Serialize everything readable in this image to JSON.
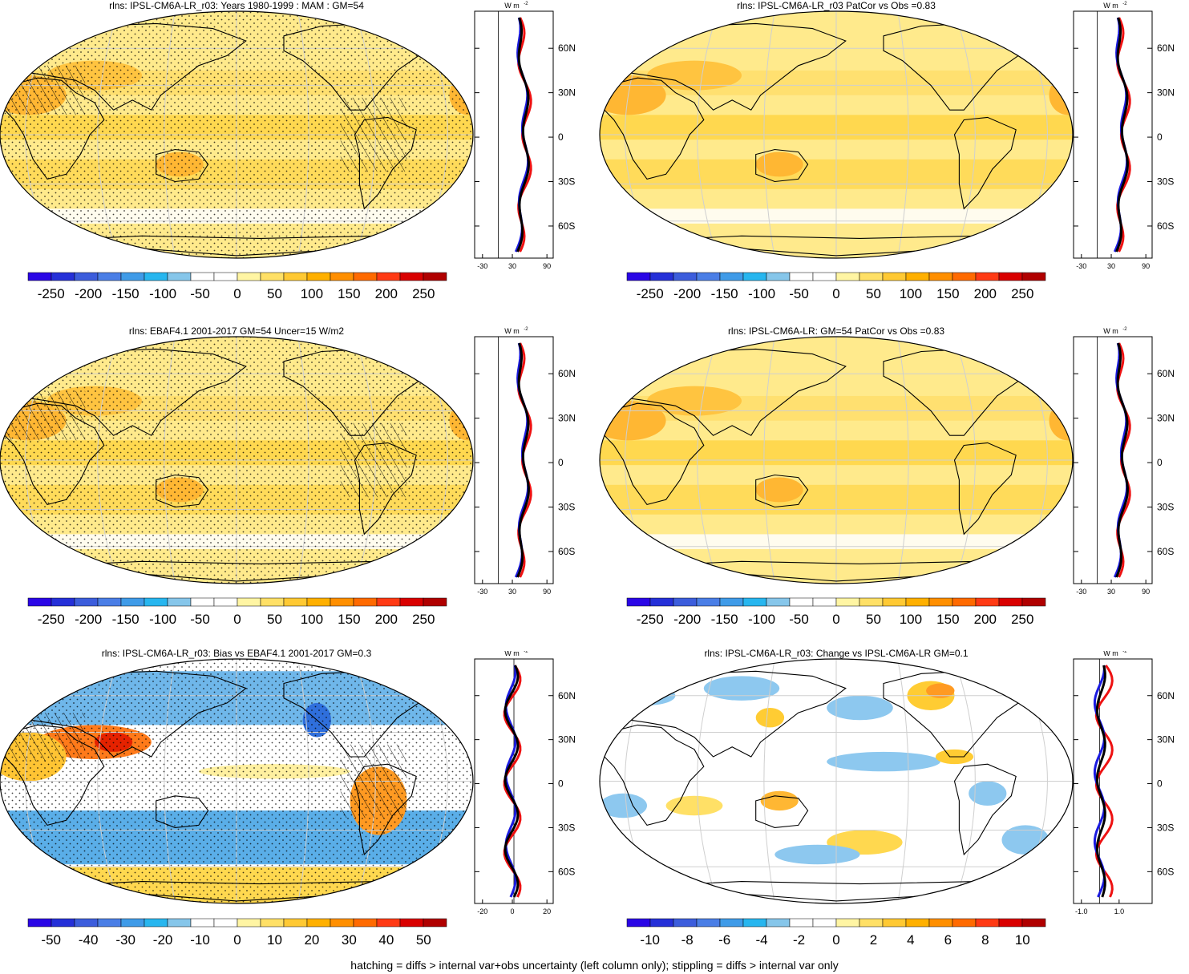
{
  "panels": [
    {
      "id": "p1",
      "title": "rlns: IPSL-CM6A-LR_r03: Years 1980-1999 : MAM : GM=54",
      "colorbar_labels": [
        "-250",
        "-200",
        "-150",
        "-100",
        "-50",
        "0",
        "50",
        "100",
        "150",
        "200",
        "250"
      ],
      "profile_xticks": [
        "-30",
        "30",
        "90"
      ],
      "profile_unit": "W m",
      "profile_unit_sup": "-2",
      "lat_labels": [
        "60N",
        "30N",
        "0",
        "30S",
        "60S"
      ],
      "hatching": true
    },
    {
      "id": "p2",
      "title": "rlns: IPSL-CM6A-LR_r03 PatCor vs Obs =0.83",
      "colorbar_labels": [
        "-250",
        "-200",
        "-150",
        "-100",
        "-50",
        "0",
        "50",
        "100",
        "150",
        "200",
        "250"
      ],
      "profile_xticks": [
        "-30",
        "30",
        "90"
      ],
      "profile_unit": "W m",
      "profile_unit_sup": "-2",
      "lat_labels": [
        "60N",
        "30N",
        "0",
        "30S",
        "60S"
      ],
      "hatching": false
    },
    {
      "id": "p3",
      "title": "rlns: EBAF4.1 2001-2017 GM=54 Uncer=15 W/m2",
      "colorbar_labels": [
        "-250",
        "-200",
        "-150",
        "-100",
        "-50",
        "0",
        "50",
        "100",
        "150",
        "200",
        "250"
      ],
      "profile_xticks": [
        "-30",
        "30",
        "90"
      ],
      "profile_unit": "W m",
      "profile_unit_sup": "-2",
      "lat_labels": [
        "60N",
        "30N",
        "0",
        "30S",
        "60S"
      ],
      "hatching": true
    },
    {
      "id": "p4",
      "title": "rlns: IPSL-CM6A-LR: GM=54 PatCor vs Obs =0.83",
      "colorbar_labels": [
        "-250",
        "-200",
        "-150",
        "-100",
        "-50",
        "0",
        "50",
        "100",
        "150",
        "200",
        "250"
      ],
      "profile_xticks": [
        "-30",
        "30",
        "90"
      ],
      "profile_unit": "W m",
      "profile_unit_sup": "-2",
      "lat_labels": [
        "60N",
        "30N",
        "0",
        "30S",
        "60S"
      ],
      "hatching": false
    },
    {
      "id": "p5",
      "title": "rlns: IPSL-CM6A-LR_r03: Bias vs EBAF4.1 2001-2017 GM=0.3",
      "colorbar_labels": [
        "-50",
        "-40",
        "-30",
        "-20",
        "-10",
        "0",
        "10",
        "20",
        "30",
        "40",
        "50"
      ],
      "profile_xticks": [
        "-20",
        "0",
        "20"
      ],
      "profile_unit": "W m",
      "profile_unit_sup": "-2",
      "lat_labels": [
        "60N",
        "30N",
        "0",
        "30S",
        "60S"
      ],
      "hatching": true
    },
    {
      "id": "p6",
      "title": "rlns: IPSL-CM6A-LR_r03: Change vs IPSL-CM6A-LR GM=0.1",
      "colorbar_labels": [
        "-10",
        "-8",
        "-6",
        "-4",
        "-2",
        "0",
        "2",
        "4",
        "6",
        "8",
        "10"
      ],
      "profile_xticks": [
        "-1.0",
        "1.0"
      ],
      "profile_unit": "W m",
      "profile_unit_sup": "-2",
      "lat_labels": [
        "60N",
        "30N",
        "0",
        "30S",
        "60S"
      ],
      "hatching": false
    }
  ],
  "colorbar_colors": [
    "#2a06e6",
    "#2530d8",
    "#3c5ddc",
    "#4a7ee6",
    "#3f9be8",
    "#27b6ef",
    "#86c6ea",
    "#ffffff",
    "#ffffff",
    "#fff5a3",
    "#ffe066",
    "#ffc933",
    "#ffb000",
    "#ff8f00",
    "#ff6a00",
    "#ff3a14",
    "#d90000",
    "#b00000"
  ],
  "footer": "hatching = diffs > internal var+obs uncertainty (left column only); stippling = diffs > internal var only"
}
